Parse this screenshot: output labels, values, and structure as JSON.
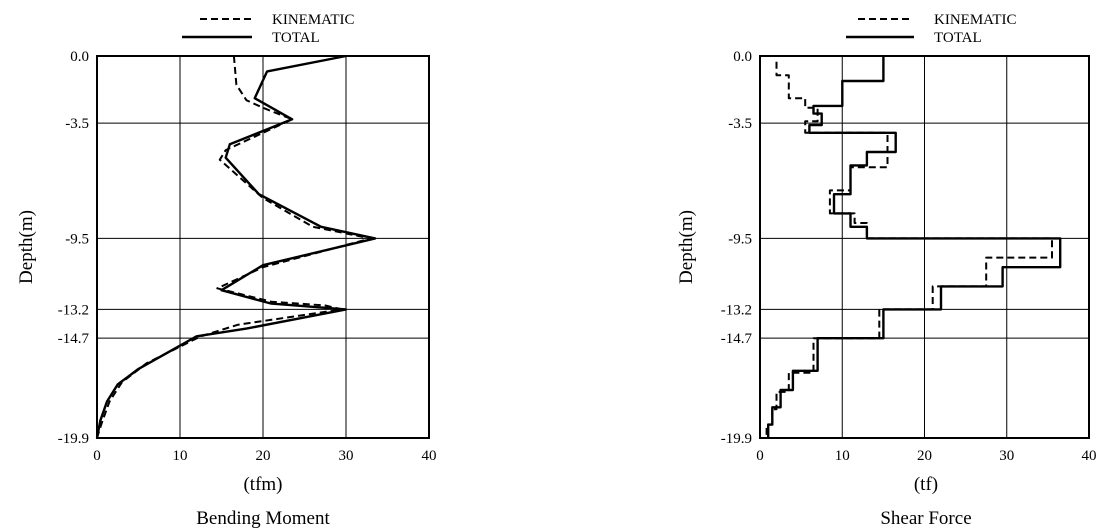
{
  "chart_data": [
    {
      "type": "line",
      "title": "Bending Moment",
      "xlabel": "(tfm)",
      "ylabel": "Depth(m)",
      "xlim": [
        0,
        40
      ],
      "ylim": [
        -19.9,
        0
      ],
      "xticks": [
        "0",
        "10",
        "20",
        "30",
        "40"
      ],
      "yticks": [
        {
          "value": 0,
          "label": "0.0"
        },
        {
          "value": -3.5,
          "label": "-3.5"
        },
        {
          "value": -9.5,
          "label": "-9.5"
        },
        {
          "value": -13.2,
          "label": "-13.2"
        },
        {
          "value": -14.7,
          "label": "-14.7"
        },
        {
          "value": -19.9,
          "label": "-19.9"
        }
      ],
      "grid": true,
      "legend": "top",
      "series": [
        {
          "name": "KINEMATIC",
          "style": "dashed",
          "x": [
            16.5,
            16.8,
            18.0,
            20.0,
            23.5,
            15.5,
            14.8,
            20.0,
            26.0,
            33.0,
            20.0,
            14.5,
            21.0,
            27.5,
            29.5,
            17.0,
            12.5,
            6.0,
            3.0,
            1.5,
            0.5,
            0
          ],
          "y": [
            0,
            -1.5,
            -2.3,
            -2.7,
            -3.3,
            -4.9,
            -5.4,
            -7.4,
            -8.9,
            -9.5,
            -11.0,
            -12.1,
            -12.8,
            -13.0,
            -13.2,
            -14.0,
            -14.6,
            -16.0,
            -17.0,
            -18.0,
            -19.2,
            -19.9
          ]
        },
        {
          "name": "TOTAL",
          "style": "solid",
          "x": [
            30.0,
            20.5,
            19.0,
            23.5,
            16.0,
            15.5,
            19.5,
            27.0,
            33.5,
            20.0,
            15.0,
            21.0,
            30.0,
            18.0,
            12.0,
            5.0,
            2.5,
            1.2,
            0.4,
            0
          ],
          "y": [
            0,
            -0.8,
            -2.2,
            -3.3,
            -4.6,
            -5.3,
            -7.2,
            -8.9,
            -9.5,
            -10.9,
            -12.2,
            -12.9,
            -13.2,
            -14.2,
            -14.6,
            -16.3,
            -17.1,
            -18.0,
            -19.0,
            -19.9
          ]
        }
      ]
    },
    {
      "type": "line",
      "title": "Shear Force",
      "xlabel": "(tf)",
      "ylabel": "Depth(m)",
      "xlim": [
        0,
        40
      ],
      "ylim": [
        -19.9,
        0
      ],
      "xticks": [
        "0",
        "10",
        "20",
        "30",
        "40"
      ],
      "yticks": [
        {
          "value": 0,
          "label": "0.0"
        },
        {
          "value": -3.5,
          "label": "-3.5"
        },
        {
          "value": -9.5,
          "label": "-9.5"
        },
        {
          "value": -13.2,
          "label": "-13.2"
        },
        {
          "value": -14.7,
          "label": "-14.7"
        },
        {
          "value": -19.9,
          "label": "-19.9"
        }
      ],
      "grid": true,
      "legend": "top",
      "series": [
        {
          "name": "KINEMATIC",
          "style": "dashed",
          "x": [
            2.0,
            2.0,
            3.5,
            3.5,
            5.5,
            5.5,
            7.0,
            7.0,
            5.5,
            5.5,
            15.5,
            15.5,
            11.0,
            11.0,
            8.5,
            8.5,
            11.5,
            11.5,
            13.0,
            13.0,
            35.5,
            35.5,
            27.5,
            27.5,
            21.0,
            21.0,
            14.5,
            14.5,
            6.5,
            6.5,
            3.5,
            3.5,
            2.0,
            2.0,
            1.5,
            1.5,
            0.8,
            0.8
          ],
          "y": [
            -0.3,
            -1.0,
            -1.0,
            -2.2,
            -2.2,
            -2.7,
            -2.7,
            -3.4,
            -3.4,
            -4.0,
            -4.0,
            -5.8,
            -5.8,
            -7.0,
            -7.0,
            -8.2,
            -8.2,
            -8.7,
            -8.7,
            -9.5,
            -9.5,
            -10.5,
            -10.5,
            -12.0,
            -12.0,
            -13.2,
            -13.2,
            -14.7,
            -14.7,
            -16.5,
            -16.5,
            -17.5,
            -17.5,
            -18.4,
            -18.4,
            -19.2,
            -19.2,
            -19.9
          ]
        },
        {
          "name": "TOTAL",
          "style": "solid",
          "x": [
            15.0,
            15.0,
            10.0,
            10.0,
            6.5,
            6.5,
            7.5,
            7.5,
            6.0,
            6.0,
            16.5,
            16.5,
            13.0,
            13.0,
            11.0,
            11.0,
            9.0,
            9.0,
            11.0,
            11.0,
            13.0,
            13.0,
            36.5,
            36.5,
            29.5,
            29.5,
            22.0,
            22.0,
            15.0,
            15.0,
            7.0,
            7.0,
            4.0,
            4.0,
            2.5,
            2.5,
            1.5,
            1.5,
            1.0,
            1.0
          ],
          "y": [
            0,
            -1.3,
            -1.3,
            -2.6,
            -2.6,
            -3.0,
            -3.0,
            -3.6,
            -3.6,
            -4.0,
            -4.0,
            -5.0,
            -5.0,
            -5.7,
            -5.7,
            -7.2,
            -7.2,
            -8.2,
            -8.2,
            -8.9,
            -8.9,
            -9.5,
            -9.5,
            -11.0,
            -11.0,
            -12.0,
            -12.0,
            -13.2,
            -13.2,
            -14.7,
            -14.7,
            -16.4,
            -16.4,
            -17.4,
            -17.4,
            -18.3,
            -18.3,
            -19.2,
            -19.2,
            -19.9
          ]
        }
      ]
    }
  ]
}
